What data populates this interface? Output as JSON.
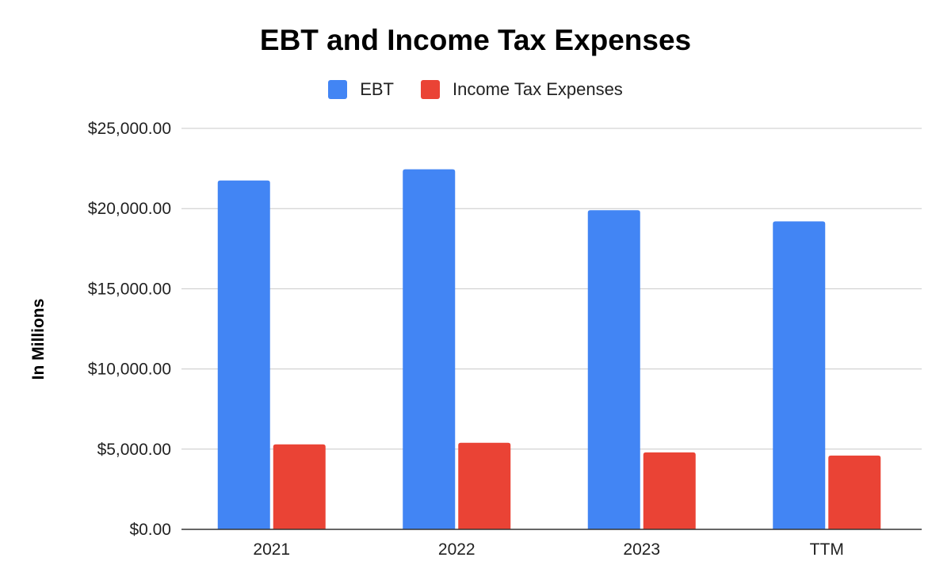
{
  "chart_data": {
    "type": "bar",
    "title": "EBT and Income Tax Expenses",
    "xlabel": "",
    "ylabel": "In Millions",
    "categories": [
      "2021",
      "2022",
      "2023",
      "TTM"
    ],
    "series": [
      {
        "name": "EBT",
        "color": "#4285f4",
        "values": [
          21750,
          22450,
          19900,
          19200
        ]
      },
      {
        "name": "Income Tax Expenses",
        "color": "#ea4335",
        "values": [
          5300,
          5400,
          4800,
          4600
        ]
      }
    ],
    "ylim": [
      0,
      25000
    ],
    "yticks": [
      0,
      5000,
      10000,
      15000,
      20000,
      25000
    ],
    "ytick_labels": [
      "$0.00",
      "$5,000.00",
      "$10,000.00",
      "$15,000.00",
      "$20,000.00",
      "$25,000.00"
    ],
    "grid": true,
    "legend_position": "top-center"
  }
}
